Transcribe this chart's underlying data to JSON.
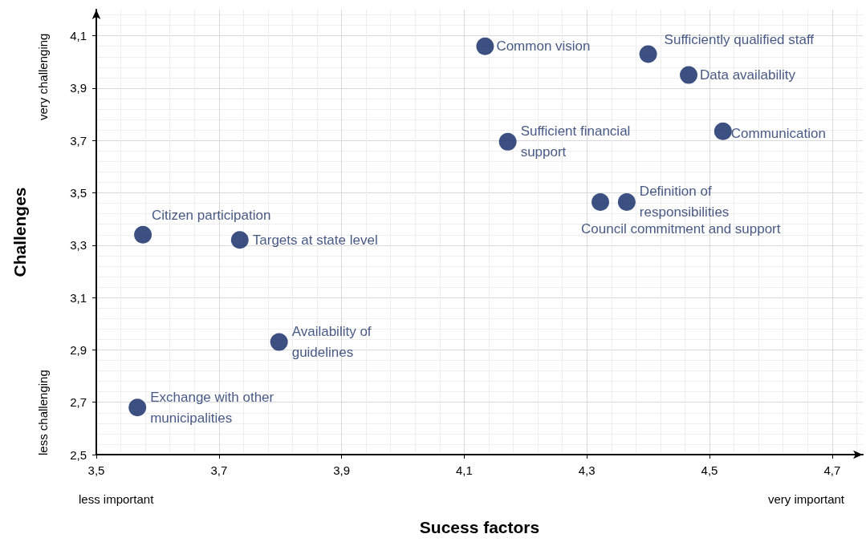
{
  "chart_data": {
    "type": "scatter",
    "xlabel": "Sucess factors",
    "ylabel": "Challenges",
    "x": [
      4.134,
      4.4,
      4.466,
      4.522,
      4.171,
      4.322,
      4.365,
      3.576,
      3.734,
      3.798,
      3.567
    ],
    "values": [
      4.06,
      4.03,
      3.95,
      3.735,
      3.695,
      3.465,
      3.465,
      3.34,
      3.32,
      2.93,
      2.68
    ],
    "color": "#0b2461",
    "marker": "circle",
    "grid": true,
    "xlim": [
      3.5,
      4.75
    ],
    "xticks": [
      {
        "value": 3.5,
        "label": "3,5"
      },
      {
        "value": 3.7,
        "label": "3,7"
      },
      {
        "value": 3.9,
        "label": "3,9"
      },
      {
        "value": 4.1,
        "label": "4,1"
      },
      {
        "value": 4.3,
        "label": "4,3"
      },
      {
        "value": 4.5,
        "label": "4,5"
      },
      {
        "value": 4.7,
        "label": "4,7"
      }
    ],
    "ylim": [
      2.5,
      4.2
    ],
    "yticks": [
      {
        "value": 2.5,
        "label": "2,5"
      },
      {
        "value": 2.7,
        "label": "2,7"
      },
      {
        "value": 2.9,
        "label": "2,9"
      },
      {
        "value": 3.1,
        "label": "3,1"
      },
      {
        "value": 3.3,
        "label": "3,3"
      },
      {
        "value": 3.5,
        "label": "3,5"
      },
      {
        "value": 3.7,
        "label": "3,7"
      },
      {
        "value": 3.9,
        "label": "3,9"
      },
      {
        "value": 4.1,
        "label": "4,1"
      }
    ],
    "annotations": [
      {
        "text": "Common vision",
        "x": 4.134,
        "y": 4.06
      },
      {
        "text": "Sufficiently qualified staff",
        "x": 4.4,
        "y": 4.03
      },
      {
        "text": "Data availability",
        "x": 4.466,
        "y": 3.95
      },
      {
        "text": "Communication",
        "x": 4.522,
        "y": 3.735
      },
      {
        "text": "Sufficient financial support",
        "x": 4.171,
        "y": 3.695
      },
      {
        "text": "Council commitment and support",
        "x": 4.322,
        "y": 3.465
      },
      {
        "text": "Definition of responsibilities",
        "x": 4.365,
        "y": 3.465
      },
      {
        "text": "Citizen participation",
        "x": 3.576,
        "y": 3.34
      },
      {
        "text": "Targets at state level",
        "x": 3.734,
        "y": 3.32
      },
      {
        "text": "Availability of guidelines",
        "x": 3.798,
        "y": 2.93
      },
      {
        "text": "Exchange with other municipalities",
        "x": 3.567,
        "y": 2.68
      },
      "less important",
      "very important",
      "very challenging",
      "less challenging"
    ]
  }
}
